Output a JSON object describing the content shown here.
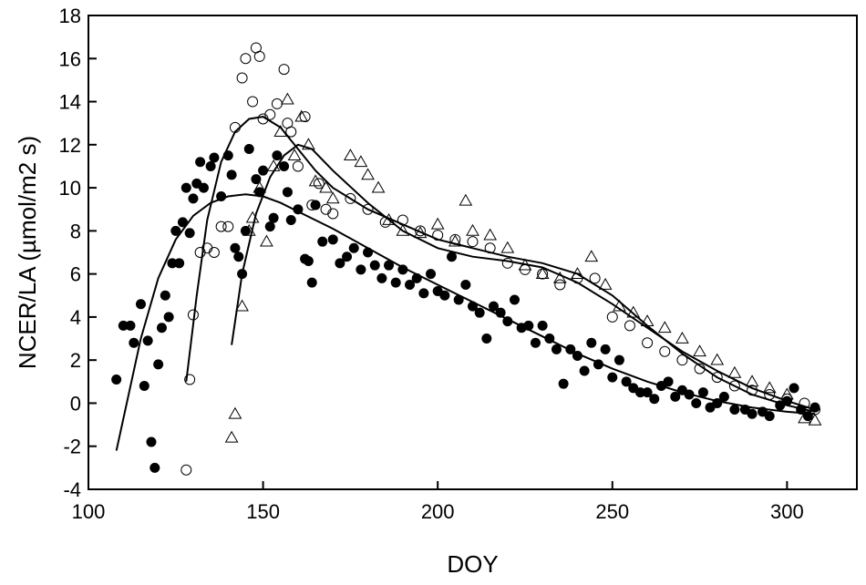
{
  "chart_data": {
    "type": "scatter",
    "title": "",
    "xlabel": "DOY",
    "ylabel": "NCER/LA (µmol/m2 s)",
    "xlim": [
      100,
      320
    ],
    "ylim": [
      -4,
      18
    ],
    "xticks": [
      "100",
      "150",
      "200",
      "250",
      "300"
    ],
    "yticks": [
      "-4",
      "-2",
      "0",
      "2",
      "4",
      "6",
      "8",
      "10",
      "12",
      "14",
      "16",
      "18"
    ],
    "grid": false,
    "legend": "none",
    "colors": {
      "filled": "#000000",
      "open": "#000000",
      "line": "#000000"
    },
    "series": [
      {
        "marker": "filled-circle",
        "points": [
          [
            108,
            1.1
          ],
          [
            110,
            3.6
          ],
          [
            112,
            3.6
          ],
          [
            113,
            2.8
          ],
          [
            115,
            4.6
          ],
          [
            116,
            0.8
          ],
          [
            117,
            2.9
          ],
          [
            118,
            -1.8
          ],
          [
            119,
            -3.0
          ],
          [
            120,
            1.8
          ],
          [
            121,
            3.5
          ],
          [
            122,
            5.0
          ],
          [
            123,
            4.0
          ],
          [
            124,
            6.5
          ],
          [
            125,
            8.0
          ],
          [
            126,
            6.5
          ],
          [
            127,
            8.4
          ],
          [
            128,
            10.0
          ],
          [
            129,
            7.9
          ],
          [
            130,
            9.5
          ],
          [
            131,
            10.2
          ],
          [
            132,
            11.2
          ],
          [
            133,
            10.0
          ],
          [
            135,
            11.0
          ],
          [
            136,
            11.4
          ],
          [
            138,
            9.6
          ],
          [
            140,
            11.5
          ],
          [
            141,
            10.6
          ],
          [
            142,
            7.2
          ],
          [
            143,
            6.8
          ],
          [
            144,
            6.0
          ],
          [
            145,
            8.0
          ],
          [
            146,
            11.8
          ],
          [
            148,
            10.4
          ],
          [
            149,
            9.8
          ],
          [
            150,
            10.8
          ],
          [
            152,
            8.2
          ],
          [
            153,
            8.6
          ],
          [
            154,
            11.5
          ],
          [
            156,
            11.0
          ],
          [
            157,
            9.8
          ],
          [
            158,
            8.5
          ],
          [
            160,
            9.0
          ],
          [
            162,
            6.7
          ],
          [
            163,
            6.6
          ],
          [
            164,
            5.6
          ],
          [
            165,
            9.2
          ],
          [
            167,
            7.5
          ],
          [
            170,
            7.6
          ],
          [
            172,
            6.5
          ],
          [
            174,
            6.8
          ],
          [
            176,
            7.2
          ],
          [
            178,
            6.2
          ],
          [
            180,
            7.0
          ],
          [
            182,
            6.4
          ],
          [
            184,
            5.8
          ],
          [
            186,
            6.4
          ],
          [
            188,
            5.6
          ],
          [
            190,
            6.2
          ],
          [
            192,
            5.5
          ],
          [
            194,
            5.8
          ],
          [
            196,
            5.1
          ],
          [
            198,
            6.0
          ],
          [
            200,
            5.2
          ],
          [
            202,
            5.0
          ],
          [
            204,
            6.8
          ],
          [
            206,
            4.8
          ],
          [
            208,
            5.5
          ],
          [
            210,
            4.5
          ],
          [
            212,
            4.2
          ],
          [
            214,
            3.0
          ],
          [
            216,
            4.5
          ],
          [
            218,
            4.2
          ],
          [
            220,
            3.8
          ],
          [
            222,
            4.8
          ],
          [
            224,
            3.5
          ],
          [
            226,
            3.6
          ],
          [
            228,
            2.8
          ],
          [
            230,
            3.6
          ],
          [
            232,
            3.0
          ],
          [
            234,
            2.5
          ],
          [
            236,
            0.9
          ],
          [
            238,
            2.5
          ],
          [
            240,
            2.2
          ],
          [
            242,
            1.5
          ],
          [
            244,
            2.8
          ],
          [
            246,
            1.8
          ],
          [
            248,
            2.5
          ],
          [
            250,
            1.2
          ],
          [
            252,
            2.0
          ],
          [
            254,
            1.0
          ],
          [
            256,
            0.7
          ],
          [
            258,
            0.5
          ],
          [
            260,
            0.5
          ],
          [
            262,
            0.2
          ],
          [
            264,
            0.8
          ],
          [
            266,
            1.0
          ],
          [
            268,
            0.3
          ],
          [
            270,
            0.6
          ],
          [
            272,
            0.4
          ],
          [
            274,
            0.0
          ],
          [
            276,
            0.5
          ],
          [
            278,
            -0.2
          ],
          [
            280,
            0.0
          ],
          [
            282,
            0.3
          ],
          [
            285,
            -0.3
          ],
          [
            288,
            -0.3
          ],
          [
            290,
            -0.5
          ],
          [
            293,
            -0.4
          ],
          [
            295,
            -0.6
          ],
          [
            298,
            -0.1
          ],
          [
            300,
            0.1
          ],
          [
            302,
            0.7
          ],
          [
            304,
            -0.3
          ],
          [
            306,
            -0.6
          ],
          [
            308,
            -0.2
          ]
        ]
      },
      {
        "marker": "open-circle",
        "points": [
          [
            128,
            -3.1
          ],
          [
            129,
            1.1
          ],
          [
            130,
            4.1
          ],
          [
            132,
            7.0
          ],
          [
            134,
            7.2
          ],
          [
            136,
            7.0
          ],
          [
            138,
            8.2
          ],
          [
            140,
            8.2
          ],
          [
            142,
            12.8
          ],
          [
            144,
            15.1
          ],
          [
            145,
            16.0
          ],
          [
            147,
            14.0
          ],
          [
            148,
            16.5
          ],
          [
            149,
            16.1
          ],
          [
            150,
            13.2
          ],
          [
            152,
            13.4
          ],
          [
            154,
            13.9
          ],
          [
            156,
            15.5
          ],
          [
            157,
            13.0
          ],
          [
            158,
            12.6
          ],
          [
            160,
            11.0
          ],
          [
            162,
            13.3
          ],
          [
            164,
            9.2
          ],
          [
            166,
            10.2
          ],
          [
            168,
            9.0
          ],
          [
            170,
            8.8
          ],
          [
            175,
            9.5
          ],
          [
            180,
            9.0
          ],
          [
            185,
            8.4
          ],
          [
            190,
            8.5
          ],
          [
            195,
            8.0
          ],
          [
            200,
            7.8
          ],
          [
            205,
            7.6
          ],
          [
            210,
            7.5
          ],
          [
            215,
            7.2
          ],
          [
            220,
            6.5
          ],
          [
            225,
            6.2
          ],
          [
            230,
            6.0
          ],
          [
            235,
            5.5
          ],
          [
            240,
            5.8
          ],
          [
            245,
            5.8
          ],
          [
            250,
            4.0
          ],
          [
            255,
            3.6
          ],
          [
            260,
            2.8
          ],
          [
            265,
            2.4
          ],
          [
            270,
            2.0
          ],
          [
            275,
            1.6
          ],
          [
            280,
            1.2
          ],
          [
            285,
            0.8
          ],
          [
            290,
            0.6
          ],
          [
            295,
            0.4
          ],
          [
            300,
            0.2
          ],
          [
            305,
            0.0
          ],
          [
            308,
            -0.3
          ]
        ]
      },
      {
        "marker": "open-triangle",
        "points": [
          [
            141,
            -1.6
          ],
          [
            142,
            -0.5
          ],
          [
            144,
            4.5
          ],
          [
            146,
            8.0
          ],
          [
            147,
            8.6
          ],
          [
            149,
            10.0
          ],
          [
            151,
            7.5
          ],
          [
            153,
            11.0
          ],
          [
            155,
            12.6
          ],
          [
            157,
            14.1
          ],
          [
            159,
            11.5
          ],
          [
            161,
            13.3
          ],
          [
            163,
            12.0
          ],
          [
            165,
            10.3
          ],
          [
            168,
            10.0
          ],
          [
            170,
            9.5
          ],
          [
            175,
            11.5
          ],
          [
            178,
            11.2
          ],
          [
            180,
            10.6
          ],
          [
            183,
            10.0
          ],
          [
            186,
            8.5
          ],
          [
            190,
            8.0
          ],
          [
            195,
            7.9
          ],
          [
            200,
            8.3
          ],
          [
            205,
            7.5
          ],
          [
            208,
            9.4
          ],
          [
            210,
            8.0
          ],
          [
            215,
            7.8
          ],
          [
            220,
            7.2
          ],
          [
            225,
            6.4
          ],
          [
            230,
            6.0
          ],
          [
            235,
            5.8
          ],
          [
            240,
            6.0
          ],
          [
            244,
            6.8
          ],
          [
            248,
            5.5
          ],
          [
            252,
            4.5
          ],
          [
            256,
            4.2
          ],
          [
            260,
            3.8
          ],
          [
            265,
            3.5
          ],
          [
            270,
            3.0
          ],
          [
            275,
            2.4
          ],
          [
            280,
            2.0
          ],
          [
            285,
            1.4
          ],
          [
            290,
            1.0
          ],
          [
            295,
            0.7
          ],
          [
            300,
            0.4
          ],
          [
            305,
            -0.7
          ],
          [
            308,
            -0.8
          ]
        ]
      }
    ],
    "fits": [
      {
        "points": [
          [
            108,
            -2.2
          ],
          [
            115,
            3.0
          ],
          [
            120,
            5.8
          ],
          [
            125,
            7.6
          ],
          [
            130,
            8.7
          ],
          [
            135,
            9.3
          ],
          [
            140,
            9.6
          ],
          [
            145,
            9.7
          ],
          [
            150,
            9.6
          ],
          [
            155,
            9.3
          ],
          [
            160,
            8.9
          ],
          [
            170,
            8.1
          ],
          [
            180,
            7.2
          ],
          [
            190,
            6.3
          ],
          [
            200,
            5.5
          ],
          [
            210,
            4.7
          ],
          [
            220,
            3.9
          ],
          [
            230,
            3.1
          ],
          [
            240,
            2.3
          ],
          [
            250,
            1.6
          ],
          [
            260,
            1.0
          ],
          [
            270,
            0.5
          ],
          [
            280,
            0.1
          ],
          [
            290,
            -0.2
          ],
          [
            300,
            -0.4
          ],
          [
            308,
            -0.5
          ]
        ]
      },
      {
        "points": [
          [
            128,
            1.0
          ],
          [
            131,
            5.0
          ],
          [
            134,
            8.5
          ],
          [
            138,
            11.2
          ],
          [
            142,
            12.6
          ],
          [
            146,
            13.2
          ],
          [
            150,
            13.3
          ],
          [
            155,
            12.8
          ],
          [
            160,
            11.8
          ],
          [
            165,
            10.8
          ],
          [
            170,
            10.0
          ],
          [
            180,
            9.0
          ],
          [
            190,
            8.3
          ],
          [
            200,
            7.6
          ],
          [
            210,
            7.2
          ],
          [
            220,
            6.8
          ],
          [
            230,
            6.5
          ],
          [
            240,
            6.0
          ],
          [
            250,
            5.0
          ],
          [
            260,
            3.6
          ],
          [
            270,
            2.3
          ],
          [
            280,
            1.2
          ],
          [
            290,
            0.4
          ],
          [
            300,
            -0.1
          ],
          [
            308,
            -0.4
          ]
        ]
      },
      {
        "points": [
          [
            141,
            2.7
          ],
          [
            144,
            6.0
          ],
          [
            148,
            8.8
          ],
          [
            152,
            10.5
          ],
          [
            156,
            11.5
          ],
          [
            160,
            12.0
          ],
          [
            164,
            11.8
          ],
          [
            170,
            10.8
          ],
          [
            180,
            9.3
          ],
          [
            190,
            8.0
          ],
          [
            200,
            7.2
          ],
          [
            210,
            6.8
          ],
          [
            220,
            6.6
          ],
          [
            230,
            6.3
          ],
          [
            240,
            5.6
          ],
          [
            250,
            4.6
          ],
          [
            260,
            3.5
          ],
          [
            270,
            2.4
          ],
          [
            280,
            1.5
          ],
          [
            290,
            0.7
          ],
          [
            300,
            0.1
          ],
          [
            308,
            -0.3
          ]
        ]
      }
    ]
  }
}
